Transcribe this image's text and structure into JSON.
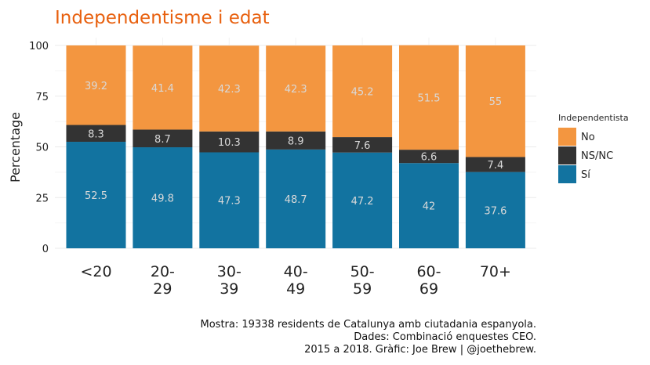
{
  "chart_data": {
    "type": "bar",
    "stacked": true,
    "title": "Independentisme i edat",
    "ylabel": "Percentage",
    "xlabel": "",
    "ylim": [
      0,
      100
    ],
    "yticks": [
      "0",
      "25",
      "50",
      "75",
      "100"
    ],
    "categories": [
      [
        "<20"
      ],
      [
        "20-",
        "29"
      ],
      [
        "30-",
        "39"
      ],
      [
        "40-",
        "49"
      ],
      [
        "50-",
        "59"
      ],
      [
        "60-",
        "69"
      ],
      [
        "70+"
      ]
    ],
    "series": [
      {
        "name": "Sí",
        "color": "#1273A0",
        "values": [
          52.5,
          49.8,
          47.3,
          48.7,
          47.2,
          42,
          37.6
        ],
        "labels": [
          "52.5",
          "49.8",
          "47.3",
          "48.7",
          "47.2",
          "42",
          "37.6"
        ]
      },
      {
        "name": "NS/NC",
        "color": "#333333",
        "values": [
          8.3,
          8.7,
          10.3,
          8.9,
          7.6,
          6.6,
          7.4
        ],
        "labels": [
          "8.3",
          "8.7",
          "10.3",
          "8.9",
          "7.6",
          "6.6",
          "7.4"
        ]
      },
      {
        "name": "No",
        "color": "#F39640",
        "values": [
          39.2,
          41.4,
          42.3,
          42.3,
          45.2,
          51.5,
          55
        ],
        "labels": [
          "39.2",
          "41.4",
          "42.3",
          "42.3",
          "45.2",
          "51.5",
          "55"
        ]
      }
    ],
    "legend": {
      "title": "Independentista",
      "placement": "right",
      "order": [
        "No",
        "NS/NC",
        "Sí"
      ]
    },
    "caption": [
      "Mostra: 19338 residents de Catalunya amb ciutadania espanyola.",
      "Dades: Combinació enquestes CEO.",
      "2015 a 2018. Gràfic: Joe Brew | @joethebrew."
    ],
    "grid": true
  }
}
